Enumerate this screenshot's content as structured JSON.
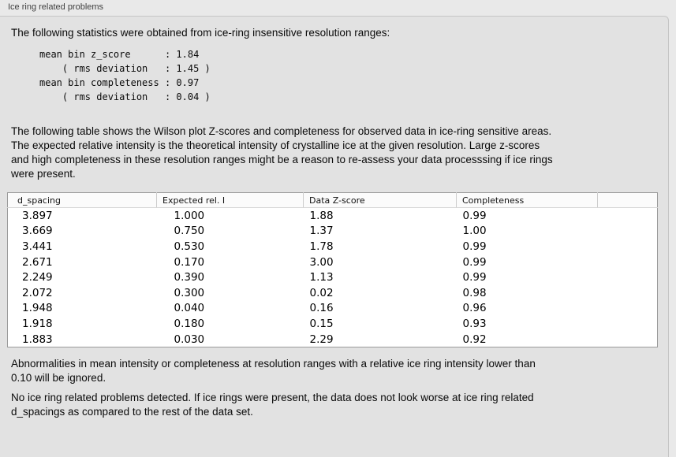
{
  "panel": {
    "title": "Ice ring related problems"
  },
  "intro": {
    "text": "The following statistics were obtained from ice-ring insensitive resolution ranges:"
  },
  "stats_block": {
    "lines": [
      "mean bin z_score      : 1.84",
      "    ( rms deviation   : 1.45 )",
      "mean bin completeness : 0.97",
      "    ( rms deviation   : 0.04 )"
    ]
  },
  "description": {
    "lines": [
      "The following table shows the Wilson plot Z-scores and completeness for observed data in ice-ring sensitive areas.",
      "The expected relative intensity is the theoretical intensity of crystalline ice at the given resolution. Large z-scores",
      "and high completeness in these resolution ranges might be a reason to re-assess your data processsing if ice rings",
      "were present."
    ]
  },
  "table": {
    "columns": [
      "d_spacing",
      "Expected rel. I",
      "Data Z-score",
      "Completeness"
    ],
    "rows": [
      [
        "3.897",
        "1.000",
        "1.88",
        "0.99"
      ],
      [
        "3.669",
        "0.750",
        "1.37",
        "1.00"
      ],
      [
        "3.441",
        "0.530",
        "1.78",
        "0.99"
      ],
      [
        "2.671",
        "0.170",
        "3.00",
        "0.99"
      ],
      [
        "2.249",
        "0.390",
        "1.13",
        "0.99"
      ],
      [
        "2.072",
        "0.300",
        "0.02",
        "0.98"
      ],
      [
        "1.948",
        "0.040",
        "0.16",
        "0.96"
      ],
      [
        "1.918",
        "0.180",
        "0.15",
        "0.93"
      ],
      [
        "1.883",
        "0.030",
        "2.29",
        "0.92"
      ]
    ]
  },
  "notes": {
    "ignore_lines": [
      "Abnormalities in mean intensity or completeness at resolution ranges with a relative ice ring intensity lower than",
      "0.10 will be ignored."
    ],
    "conclusion_lines": [
      "No ice ring related problems detected. If ice rings were present, the data does not look worse at ice ring related",
      "d_spacings as compared to the rest of the data set."
    ]
  }
}
